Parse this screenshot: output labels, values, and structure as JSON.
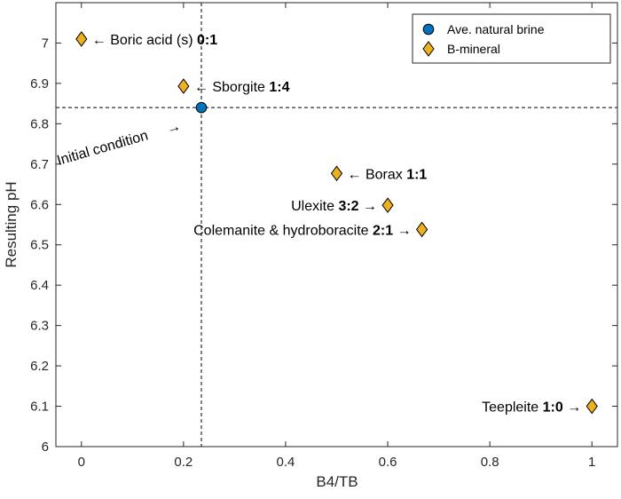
{
  "chart_data": {
    "type": "scatter",
    "xlabel": "B4/TB",
    "ylabel": "Resulting pH",
    "xlim": [
      -0.05,
      1.05
    ],
    "ylim": [
      6.0,
      7.1
    ],
    "xticks": [
      0,
      0.2,
      0.4,
      0.6,
      0.8,
      1
    ],
    "xtick_labels": [
      "0",
      "0.2",
      "0.4",
      "0.6",
      "0.8",
      "1"
    ],
    "yticks": [
      6.0,
      6.1,
      6.2,
      6.3,
      6.4,
      6.5,
      6.6,
      6.7,
      6.8,
      6.9,
      7.0
    ],
    "ytick_labels": [
      "6",
      "6.1",
      "6.2",
      "6.3",
      "6.4",
      "6.5",
      "6.6",
      "6.7",
      "6.8",
      "6.9",
      "7"
    ],
    "grid": false,
    "legend": {
      "position": "top-right",
      "entries": [
        {
          "name": "Ave. natural brine",
          "marker": "circle",
          "color": "#0072BD"
        },
        {
          "name": "B-mineral",
          "marker": "diamond",
          "color": "#EDB120"
        }
      ]
    },
    "series": [
      {
        "name": "Ave. natural brine",
        "marker": "circle",
        "color": "#0072BD",
        "points": [
          {
            "x": 0.235,
            "y": 6.84
          }
        ]
      },
      {
        "name": "B-mineral",
        "marker": "diamond",
        "color": "#EDB120",
        "points": [
          {
            "x": 0.0,
            "y": 7.01
          },
          {
            "x": 0.2,
            "y": 6.893
          },
          {
            "x": 0.5,
            "y": 6.677
          },
          {
            "x": 0.6,
            "y": 6.598
          },
          {
            "x": 0.667,
            "y": 6.538
          },
          {
            "x": 1.0,
            "y": 6.1
          }
        ]
      }
    ],
    "reference_lines": {
      "vertical_x": 0.235,
      "horizontal_y": 6.84,
      "style": "dashed"
    },
    "annotations": [
      {
        "name": "boric-acid",
        "prefix": "← ",
        "text": "Boric acid (s) ",
        "ratio": "0:1",
        "suffix": "",
        "side": "right",
        "x": 0.0,
        "y": 7.01
      },
      {
        "name": "sborgite",
        "prefix": "← ",
        "text": "Sborgite ",
        "ratio": "1:4",
        "suffix": "",
        "side": "right",
        "x": 0.2,
        "y": 6.893
      },
      {
        "name": "borax",
        "prefix": "← ",
        "text": "Borax ",
        "ratio": "1:1",
        "suffix": "",
        "side": "right",
        "x": 0.5,
        "y": 6.677
      },
      {
        "name": "ulexite",
        "prefix": "",
        "text": "Ulexite ",
        "ratio": "3:2",
        "suffix": " →",
        "side": "left",
        "x": 0.6,
        "y": 6.598
      },
      {
        "name": "colemanite",
        "prefix": "",
        "text": "Colemanite & hydroboracite ",
        "ratio": "2:1",
        "suffix": " →",
        "side": "left",
        "x": 0.667,
        "y": 6.538
      },
      {
        "name": "teepleite",
        "prefix": "",
        "text": "Teepleite ",
        "ratio": "1:0",
        "suffix": " →",
        "side": "left",
        "x": 1.0,
        "y": 6.1
      }
    ],
    "initial_condition": {
      "text": "Initial condition",
      "arrow": "→"
    }
  }
}
